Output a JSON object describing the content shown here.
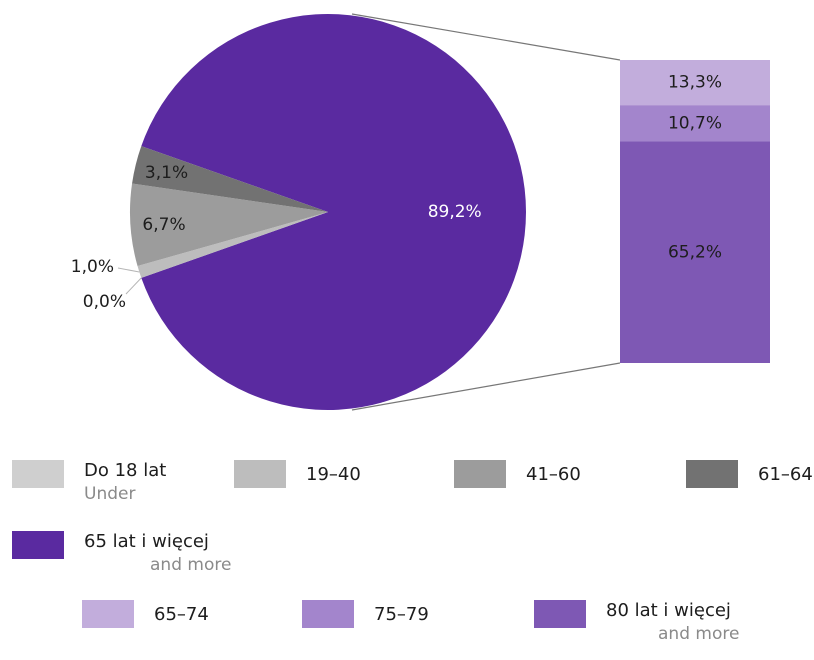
{
  "chart_data": {
    "type": "pie",
    "pie": {
      "slices": [
        {
          "label": "65 lat i więcej",
          "value": 89.2,
          "text": "89,2%",
          "color": "#5a2aa0"
        },
        {
          "label": "Do 18 lat",
          "value": 0.0,
          "text": "0,0%",
          "color": "#cfcfcf"
        },
        {
          "label": "19–40",
          "value": 1.0,
          "text": "1,0%",
          "color": "#bdbdbd"
        },
        {
          "label": "41–60",
          "value": 6.7,
          "text": "6,7%",
          "color": "#9c9c9c"
        },
        {
          "label": "61–64",
          "value": 3.1,
          "text": "3,1%",
          "color": "#727272"
        }
      ]
    },
    "bar": {
      "segments": [
        {
          "label": "65–74",
          "value": 13.3,
          "text": "13,3%",
          "color": "#c2addc"
        },
        {
          "label": "75–79",
          "value": 10.7,
          "text": "10,7%",
          "color": "#a385cc"
        },
        {
          "label": "80 lat i więcej",
          "value": 65.2,
          "text": "65,2%",
          "color": "#7e58b4"
        }
      ]
    }
  },
  "legend": [
    {
      "label": "Do 18 lat",
      "sub": "Under",
      "color": "#cfcfcf"
    },
    {
      "label": "19–40",
      "color": "#bdbdbd"
    },
    {
      "label": "41–60",
      "color": "#9c9c9c"
    },
    {
      "label": "61–64",
      "color": "#727272"
    },
    {
      "label": "65 lat i więcej",
      "sub": "and more",
      "color": "#5a2aa0"
    },
    {
      "label": "65–74",
      "color": "#c2addc"
    },
    {
      "label": "75–79",
      "color": "#a385cc"
    },
    {
      "label": "80 lat i więcej",
      "sub": "and more",
      "color": "#7e58b4"
    }
  ]
}
